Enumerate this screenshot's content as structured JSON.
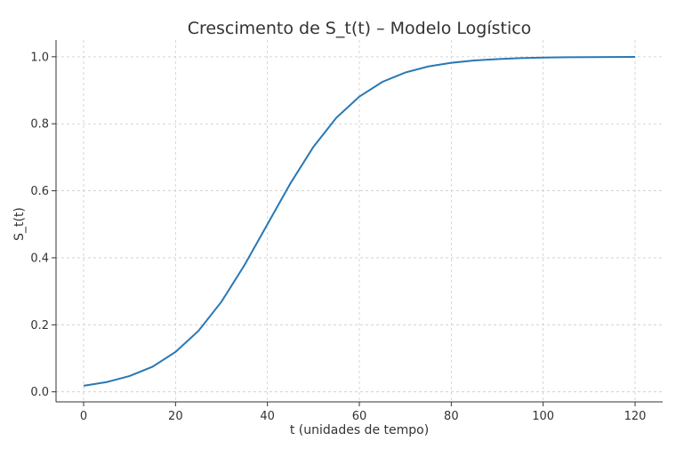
{
  "chart_data": {
    "type": "line",
    "title": "Crescimento de S_t(t) – Modelo Logístico",
    "xlabel": "t (unidades de tempo)",
    "ylabel": "S_t(t)",
    "xlim": [
      -6,
      126
    ],
    "ylim": [
      -0.03,
      1.05
    ],
    "xticks": [
      0,
      20,
      40,
      60,
      80,
      100,
      120
    ],
    "yticks": [
      0.0,
      0.2,
      0.4,
      0.6,
      0.8,
      1.0
    ],
    "xtick_labels": [
      "0",
      "20",
      "40",
      "60",
      "80",
      "100",
      "120"
    ],
    "ytick_labels": [
      "0.0",
      "0.2",
      "0.4",
      "0.6",
      "0.8",
      "1.0"
    ],
    "grid": true,
    "series": [
      {
        "color": "#2878b5",
        "x": [
          0,
          5,
          10,
          15,
          20,
          25,
          30,
          35,
          40,
          45,
          50,
          55,
          60,
          65,
          70,
          75,
          80,
          85,
          90,
          95,
          100,
          105,
          110,
          115,
          120
        ],
        "y": [
          0.018,
          0.029,
          0.047,
          0.075,
          0.119,
          0.182,
          0.269,
          0.378,
          0.5,
          0.622,
          0.731,
          0.818,
          0.881,
          0.925,
          0.953,
          0.971,
          0.982,
          0.989,
          0.993,
          0.996,
          0.9975,
          0.9985,
          0.999,
          0.9994,
          0.9996
        ]
      }
    ]
  }
}
